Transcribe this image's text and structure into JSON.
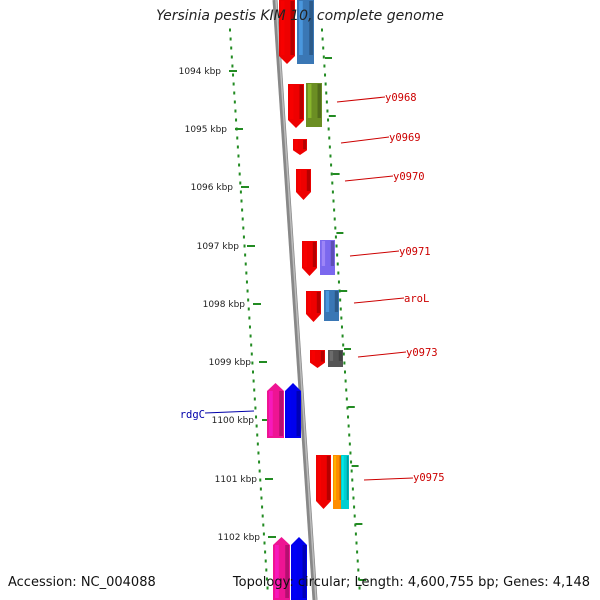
{
  "title": "Yersinia pestis KIM 10, complete genome",
  "accession": "Accession: NC_004088",
  "summary": "Topology: circular; Length: 4,600,755 bp; Genes: 4,148",
  "ticks": [
    "1094 kbp",
    "1095 kbp",
    "1096 kbp",
    "1097 kbp",
    "1098 kbp",
    "1099 kbp",
    "1100 kbp",
    "1101 kbp",
    "1102 kbp"
  ],
  "gene_labels": [
    {
      "name": "y0968",
      "color": "#cc0000"
    },
    {
      "name": "y0969",
      "color": "#cc0000"
    },
    {
      "name": "y0970",
      "color": "#cc0000"
    },
    {
      "name": "y0971",
      "color": "#cc0000"
    },
    {
      "name": "aroL",
      "color": "#cc0000"
    },
    {
      "name": "y0973",
      "color": "#cc0000"
    },
    {
      "name": "rdgC",
      "color": "#0000aa"
    },
    {
      "name": "y0975",
      "color": "#cc0000"
    }
  ],
  "colors": {
    "backbone": "#888888",
    "ruler_dots": "#228b22",
    "cds_red": "#ee0000",
    "blue": "#3a77b5",
    "olive": "#6b8e23",
    "violet": "#7b68ee",
    "gray": "#555555",
    "pink": "#ee1493",
    "deepblue": "#0000ee",
    "orange": "#ff8c00",
    "cyan": "#00ced1"
  }
}
